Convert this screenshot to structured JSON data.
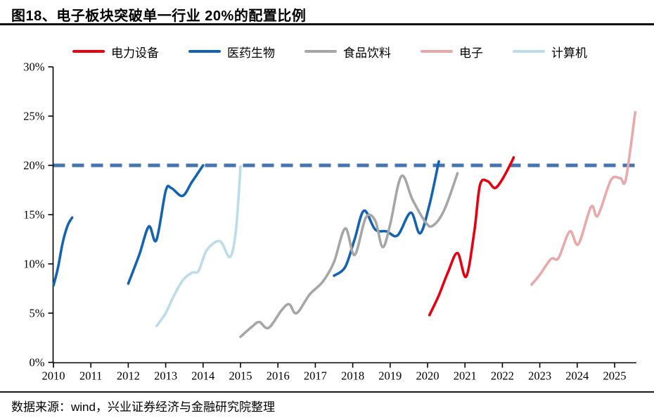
{
  "header": {
    "title": "图18、电子板块突破单一行业 20%的配置比例"
  },
  "footer": {
    "source": "数据来源：wind，兴业证券经济与金融研究院整理"
  },
  "colors": {
    "power_equipment": "#e60012",
    "pharma_bio": "#1463b2",
    "food_beverage": "#a6a6a6",
    "electronics": "#e9a9ab",
    "computer": "#bddcea",
    "reference_line": "#4674ae",
    "axis": "#000000"
  },
  "chart_data": {
    "type": "line",
    "title": "图18、电子板块突破单一行业 20%的配置比例",
    "xlabel": "",
    "ylabel": "",
    "xlim": [
      2010,
      2025.6
    ],
    "ylim": [
      0,
      30
    ],
    "grid": false,
    "legend_position": "top",
    "y_axis": {
      "tick_values": [
        0,
        5,
        10,
        15,
        20,
        25,
        30
      ],
      "tick_labels": [
        "0%",
        "5%",
        "10%",
        "15%",
        "20%",
        "25%",
        "30%"
      ]
    },
    "x_axis": {
      "tick_values": [
        2010,
        2011,
        2012,
        2013,
        2014,
        2015,
        2016,
        2017,
        2018,
        2019,
        2020,
        2021,
        2022,
        2023,
        2024,
        2025
      ],
      "tick_labels": [
        "2010",
        "2011",
        "2012",
        "2013",
        "2014",
        "2015",
        "2016",
        "2017",
        "2018",
        "2019",
        "2020",
        "2021",
        "2022",
        "2023",
        "2024",
        "2025"
      ]
    },
    "reference_line": {
      "value": 20,
      "label": "20%",
      "style": "dashed",
      "color": "#4674ae"
    },
    "series": [
      {
        "name": "电力设备",
        "key": "power-equipment",
        "color": "#e60012",
        "segments": [
          [
            [
              2020.05,
              4.8
            ],
            [
              2020.3,
              6.8
            ],
            [
              2020.55,
              9.2
            ],
            [
              2020.8,
              11.1
            ],
            [
              2021.03,
              8.7
            ],
            [
              2021.25,
              13.3
            ],
            [
              2021.4,
              18.0
            ],
            [
              2021.6,
              18.4
            ],
            [
              2021.8,
              17.7
            ],
            [
              2022.0,
              18.6
            ],
            [
              2022.2,
              20.0
            ],
            [
              2022.3,
              20.8
            ]
          ]
        ]
      },
      {
        "name": "医药生物",
        "key": "pharma-bio",
        "color": "#1463b2",
        "segments": [
          [
            [
              2010.0,
              7.8
            ],
            [
              2010.12,
              9.6
            ],
            [
              2010.25,
              12.2
            ],
            [
              2010.38,
              13.9
            ],
            [
              2010.5,
              14.7
            ]
          ],
          [
            [
              2012.0,
              8.0
            ],
            [
              2012.3,
              11.0
            ],
            [
              2012.55,
              13.8
            ],
            [
              2012.75,
              12.4
            ],
            [
              2013.0,
              17.4
            ],
            [
              2013.15,
              17.7
            ],
            [
              2013.45,
              16.9
            ],
            [
              2013.7,
              18.3
            ],
            [
              2014.0,
              20.0
            ]
          ],
          [
            [
              2017.5,
              8.8
            ],
            [
              2017.8,
              9.7
            ],
            [
              2018.05,
              12.5
            ],
            [
              2018.3,
              15.4
            ],
            [
              2018.6,
              13.5
            ],
            [
              2018.9,
              13.3
            ],
            [
              2019.2,
              12.9
            ],
            [
              2019.55,
              15.2
            ],
            [
              2019.8,
              13.1
            ],
            [
              2020.05,
              16.0
            ],
            [
              2020.3,
              20.4
            ]
          ]
        ]
      },
      {
        "name": "食品饮料",
        "key": "food-beverage",
        "color": "#a6a6a6",
        "segments": [
          [
            [
              2015.0,
              2.6
            ],
            [
              2015.3,
              3.6
            ],
            [
              2015.5,
              4.1
            ],
            [
              2015.75,
              3.5
            ],
            [
              2016.1,
              5.3
            ],
            [
              2016.3,
              5.9
            ],
            [
              2016.5,
              5.0
            ],
            [
              2016.85,
              6.9
            ],
            [
              2017.2,
              8.2
            ],
            [
              2017.5,
              10.2
            ],
            [
              2017.8,
              13.6
            ],
            [
              2018.05,
              10.9
            ],
            [
              2018.35,
              14.7
            ],
            [
              2018.6,
              14.4
            ],
            [
              2018.8,
              11.7
            ],
            [
              2019.0,
              14.0
            ],
            [
              2019.3,
              18.9
            ],
            [
              2019.6,
              16.5
            ],
            [
              2019.95,
              14.2
            ],
            [
              2020.15,
              13.9
            ],
            [
              2020.45,
              15.5
            ],
            [
              2020.8,
              19.2
            ]
          ]
        ]
      },
      {
        "name": "电子",
        "key": "electronics",
        "color": "#e9a9ab",
        "segments": [
          [
            [
              2022.78,
              7.9
            ],
            [
              2023.0,
              8.9
            ],
            [
              2023.3,
              10.5
            ],
            [
              2023.5,
              10.6
            ],
            [
              2023.8,
              13.3
            ],
            [
              2024.03,
              12.0
            ],
            [
              2024.37,
              15.8
            ],
            [
              2024.55,
              14.9
            ],
            [
              2024.9,
              18.5
            ],
            [
              2025.15,
              18.7
            ],
            [
              2025.3,
              18.6
            ],
            [
              2025.55,
              25.4
            ]
          ]
        ]
      },
      {
        "name": "计算机",
        "key": "computer",
        "color": "#bddcea",
        "segments": [
          [
            [
              2012.76,
              3.7
            ],
            [
              2013.0,
              5.0
            ],
            [
              2013.2,
              6.6
            ],
            [
              2013.45,
              8.3
            ],
            [
              2013.7,
              9.1
            ],
            [
              2013.88,
              9.3
            ],
            [
              2014.1,
              11.4
            ],
            [
              2014.45,
              12.3
            ],
            [
              2014.72,
              10.7
            ],
            [
              2014.88,
              13.5
            ],
            [
              2015.0,
              19.9
            ]
          ]
        ]
      }
    ]
  }
}
